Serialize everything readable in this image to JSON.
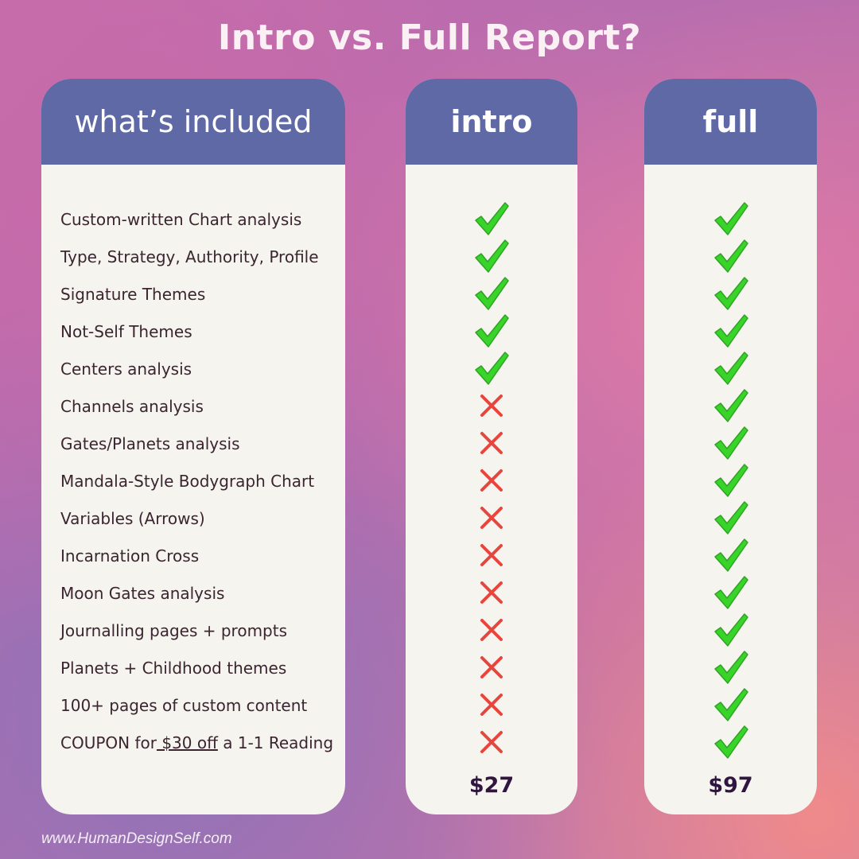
{
  "title": "Intro vs. Full Report?",
  "columns": {
    "features": "what’s included",
    "intro": "intro",
    "full": "full"
  },
  "rows": [
    {
      "label": "Custom-written Chart analysis",
      "intro": true,
      "full": true
    },
    {
      "label": "Type, Strategy, Authority, Profile",
      "intro": true,
      "full": true
    },
    {
      "label": "Signature Themes",
      "intro": true,
      "full": true
    },
    {
      "label": "Not-Self Themes",
      "intro": true,
      "full": true
    },
    {
      "label": "Centers analysis",
      "intro": true,
      "full": true
    },
    {
      "label": "Channels analysis",
      "intro": false,
      "full": true
    },
    {
      "label": "Gates/Planets analysis",
      "intro": false,
      "full": true
    },
    {
      "label": "Mandala-Style Bodygraph Chart",
      "intro": false,
      "full": true
    },
    {
      "label": "Variables (Arrows)",
      "intro": false,
      "full": true
    },
    {
      "label": "Incarnation Cross",
      "intro": false,
      "full": true
    },
    {
      "label": "Moon Gates analysis",
      "intro": false,
      "full": true
    },
    {
      "label": "Journalling pages + prompts",
      "intro": false,
      "full": true
    },
    {
      "label": "Planets + Childhood themes",
      "intro": false,
      "full": true
    },
    {
      "label": "100+ pages of custom content",
      "intro": false,
      "full": true
    },
    {
      "label_parts": [
        "COUPON for",
        " $30 off",
        " a 1-1 Reading"
      ],
      "intro": false,
      "full": true
    }
  ],
  "prices": {
    "intro": "$27",
    "full": "$97"
  },
  "icons": {
    "included": "checkmark-icon",
    "excluded": "cross-icon"
  },
  "colors": {
    "check": "#39d42a",
    "cross": "#e8453c",
    "header": "#5f69a6"
  },
  "footer": "www.HumanDesignSelf.com"
}
